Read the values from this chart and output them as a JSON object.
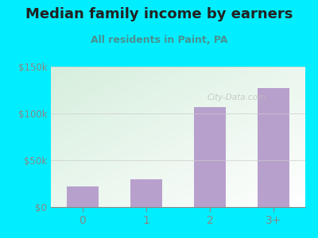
{
  "title": "Median family income by earners",
  "subtitle": "All residents in Paint, PA",
  "categories": [
    "0",
    "1",
    "2",
    "3+"
  ],
  "values": [
    22000,
    30000,
    107000,
    127000
  ],
  "bar_color": "#b8a0cc",
  "outer_bg": "#00eeff",
  "plot_bg_topleft": "#d6eedd",
  "plot_bg_bottomright": "#ffffff",
  "title_color": "#222222",
  "subtitle_color": "#4a9090",
  "tick_color": "#888888",
  "grid_color": "#cccccc",
  "ylim": [
    0,
    150000
  ],
  "yticks": [
    0,
    50000,
    100000,
    150000
  ],
  "ytick_labels": [
    "$0",
    "$50k",
    "$100k",
    "$150k"
  ],
  "watermark": "City-Data.com",
  "watermark_color": "#bbbbbb",
  "title_fontsize": 13,
  "subtitle_fontsize": 9,
  "bar_width": 0.5
}
